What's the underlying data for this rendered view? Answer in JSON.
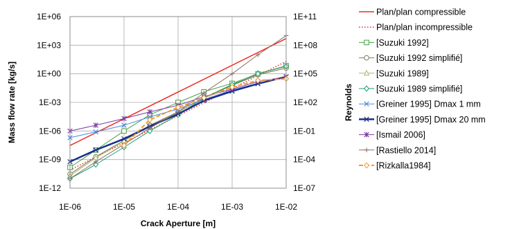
{
  "chart_data": {
    "type": "line",
    "x_scale": "log",
    "y_scale": "log",
    "xlabel": "Crack Aperture [m]",
    "ylabel": "Mass flow rate [kg/s]",
    "y2label": "Reynolds",
    "x_ticks": [
      "1E-06",
      "1E-05",
      "1E-04",
      "1E-03",
      "1E-02"
    ],
    "y_ticks": [
      "1E-12",
      "1E-09",
      "1E-06",
      "1E-03",
      "1E+00",
      "1E+03",
      "1E+06"
    ],
    "y2_ticks": [
      "1E-07",
      "1E-04",
      "1E-01",
      "1E+02",
      "1E+05",
      "1E+08",
      "1E+11"
    ],
    "xlim": [
      1e-06,
      0.01
    ],
    "ylim": [
      1e-12,
      1000000.0
    ],
    "y2lim": [
      1e-07,
      100000000000.0
    ],
    "grid": true,
    "legend_position": "right",
    "x": [
      1e-06,
      3e-06,
      1e-05,
      3e-05,
      0.0001,
      0.0003,
      0.001,
      0.003,
      0.01
    ],
    "series": [
      {
        "name": "Plan/plan compressible",
        "color": "#ee2b24",
        "style": "solid",
        "width": 1.5,
        "marker": "none",
        "x": [
          1e-06,
          0.01
        ],
        "values": [
          3e-08,
          5000.0
        ]
      },
      {
        "name": "Plan/plan incompressible",
        "color": "#ee2b24",
        "style": "dotted",
        "width": 1.5,
        "marker": "none",
        "x": [
          1e-06,
          0.01
        ],
        "values": [
          8e-11,
          20.0
        ]
      },
      {
        "name": "[Suzuki 1992]",
        "color": "#43a047",
        "style": "solid",
        "width": 1,
        "marker": "square",
        "values": [
          1.5e-10,
          1e-08,
          1e-06,
          5e-05,
          0.001,
          0.013,
          0.1,
          1,
          7
        ]
      },
      {
        "name": "[Suzuki 1992 simplifié]",
        "color": "#7a7a58",
        "style": "solid",
        "width": 1,
        "marker": "circle",
        "values": [
          3e-11,
          2e-09,
          1e-07,
          4e-06,
          0.0001,
          0.003,
          0.06,
          0.8,
          4
        ]
      },
      {
        "name": "[Suzuki 1989]",
        "color": "#a8b86a",
        "style": "solid",
        "width": 1,
        "marker": "triangle",
        "values": [
          2e-11,
          1.5e-09,
          9e-08,
          3e-06,
          9e-05,
          0.003,
          0.08,
          1.2,
          6
        ]
      },
      {
        "name": "[Suzuki 1989 simplifié]",
        "color": "#1a9a7a",
        "style": "solid",
        "width": 1,
        "marker": "diamond",
        "values": [
          1e-11,
          3e-10,
          2e-08,
          1e-06,
          5e-05,
          0.003,
          0.07,
          1,
          6
        ]
      },
      {
        "name": "[Greiner 1995] Dmax 1 mm",
        "color": "#4a8ae0",
        "style": "solid",
        "width": 1,
        "marker": "x",
        "values": [
          2e-07,
          8e-07,
          4e-06,
          3e-05,
          0.0002,
          0.002,
          0.02,
          0.1,
          0.5
        ]
      },
      {
        "name": "[Greiner 1995] Dmax 20 mm",
        "color": "#1a2f8a",
        "style": "solid",
        "width": 2.5,
        "marker": "x",
        "values": [
          6e-10,
          1e-08,
          1.5e-07,
          3e-06,
          6e-05,
          0.0015,
          0.015,
          0.09,
          0.5
        ]
      },
      {
        "name": "[Ismail 2006]",
        "color": "#7b3aa0",
        "style": "solid",
        "width": 1,
        "marker": "star",
        "values": [
          1e-06,
          4e-06,
          2e-05,
          0.0001,
          0.0005,
          0.004,
          0.025,
          0.15,
          0.5
        ]
      },
      {
        "name": "[Rastiello 2014]",
        "color": "#8a6e62",
        "style": "solid",
        "width": 1,
        "marker": "plus",
        "values": [
          1e-11,
          6e-10,
          4e-08,
          2e-06,
          0.0001,
          0.01,
          1,
          100.0,
          10000.0
        ]
      },
      {
        "name": "[Rizkalla1984]",
        "color": "#f39a28",
        "style": "dashed",
        "width": 2,
        "marker": "diamond",
        "values": [
          null,
          null,
          3e-08,
          1.5e-05,
          0.0003,
          0.003,
          0.04,
          0.2,
          0.3
        ]
      }
    ]
  }
}
